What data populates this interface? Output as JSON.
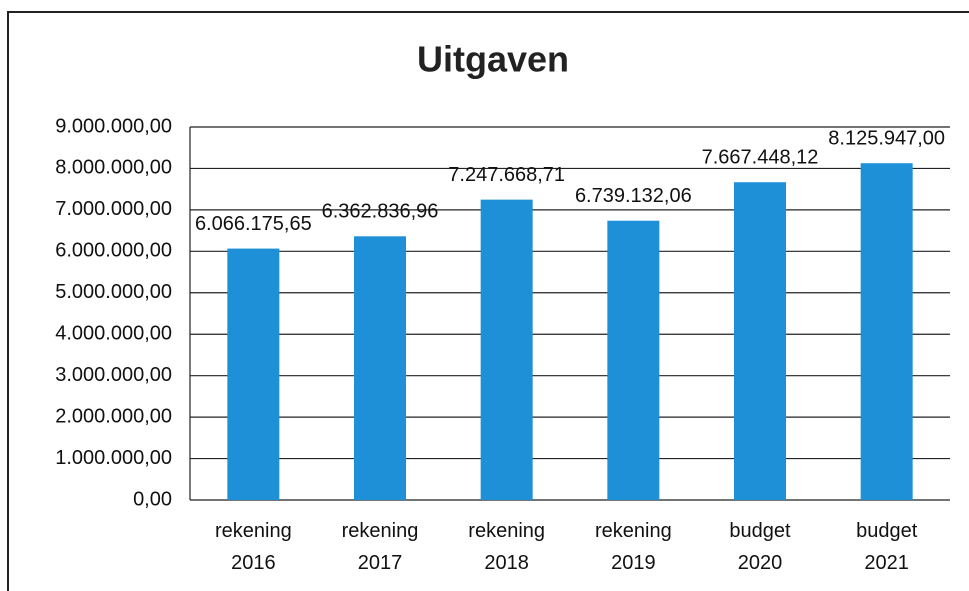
{
  "chart_data": {
    "type": "bar",
    "title": "Uitgaven",
    "categories": [
      "rekening 2016",
      "rekening 2017",
      "rekening 2018",
      "rekening 2019",
      "budget 2020",
      "budget 2021"
    ],
    "values": [
      6066175.65,
      6362836.96,
      7247668.71,
      6739132.06,
      7667448.12,
      8125947.0
    ],
    "value_labels": [
      "6.066.175,65",
      "6.362.836,96",
      "7.247.668,71",
      "6.739.132,06",
      "7.667.448,12",
      "8.125.947,00"
    ],
    "color": "#1e90d8",
    "ylim": [
      0,
      9000000
    ],
    "yticks": [
      {
        "value": 0,
        "label": "0,00"
      },
      {
        "value": 1000000,
        "label": "1.000.000,00"
      },
      {
        "value": 2000000,
        "label": "2.000.000,00"
      },
      {
        "value": 3000000,
        "label": "3.000.000,00"
      },
      {
        "value": 4000000,
        "label": "4.000.000,00"
      },
      {
        "value": 5000000,
        "label": "5.000.000,00"
      },
      {
        "value": 6000000,
        "label": "6.000.000,00"
      },
      {
        "value": 7000000,
        "label": "7.000.000,00"
      },
      {
        "value": 8000000,
        "label": "8.000.000,00"
      },
      {
        "value": 9000000,
        "label": "9.000.000,00"
      }
    ],
    "grid": true
  }
}
